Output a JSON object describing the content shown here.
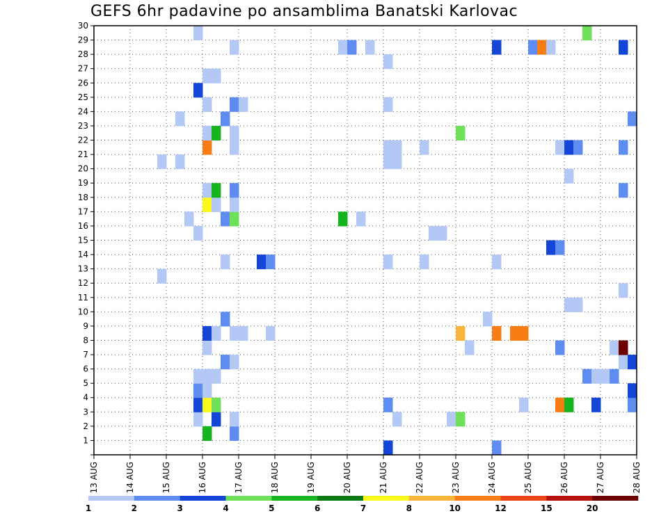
{
  "title": "GEFS 6hr padavine po ansamblima Banatski Karlovac",
  "chart_data": {
    "type": "heatmap",
    "title": "GEFS 6hr padavine po ansamblima Banatski Karlovac",
    "x_tick_labels": [
      "13 AUG",
      "14 AUG",
      "15 AUG",
      "16 AUG",
      "17 AUG",
      "18 AUG",
      "19 AUG",
      "20 AUG",
      "21 AUG",
      "22 AUG",
      "23 AUG",
      "24 AUG",
      "25 AUG",
      "26 AUG",
      "27 AUG",
      "28 AUG"
    ],
    "y_tick_labels": [
      "1",
      "2",
      "3",
      "4",
      "5",
      "6",
      "7",
      "8",
      "9",
      "10",
      "11",
      "12",
      "13",
      "14",
      "15",
      "16",
      "17",
      "18",
      "19",
      "20",
      "21",
      "22",
      "23",
      "24",
      "25",
      "26",
      "27",
      "28",
      "29",
      "30"
    ],
    "xlim_days": [
      13,
      28
    ],
    "ylim": [
      0,
      30
    ],
    "grid": true,
    "colorbar": {
      "labels": [
        "1",
        "2",
        "3",
        "4",
        "5",
        "6",
        "7",
        "8",
        "10",
        "12",
        "15",
        "20"
      ],
      "colors": [
        "#b3c8f5",
        "#5f8cf0",
        "#1346d6",
        "#6ee05a",
        "#16b41e",
        "#0a7a12",
        "#f8f81a",
        "#f8b43c",
        "#f87d14",
        "#e84414",
        "#b4140a",
        "#6e0000"
      ]
    },
    "cells": [
      {
        "t": 16.0,
        "m": 1,
        "c": 5
      },
      {
        "t": 16.75,
        "m": 1,
        "c": 2
      },
      {
        "t": 21.0,
        "m": 0,
        "c": 3
      },
      {
        "t": 24.0,
        "m": 0,
        "c": 2
      },
      {
        "t": 15.75,
        "m": 2,
        "c": 1
      },
      {
        "t": 16.25,
        "m": 2,
        "c": 3
      },
      {
        "t": 16.75,
        "m": 2,
        "c": 1
      },
      {
        "t": 21.25,
        "m": 2,
        "c": 1
      },
      {
        "t": 22.75,
        "m": 2,
        "c": 1
      },
      {
        "t": 23.0,
        "m": 2,
        "c": 4
      },
      {
        "t": 15.75,
        "m": 3,
        "c": 3
      },
      {
        "t": 16.0,
        "m": 3,
        "c": 7
      },
      {
        "t": 16.25,
        "m": 3,
        "c": 4
      },
      {
        "t": 21.0,
        "m": 3,
        "c": 2
      },
      {
        "t": 24.75,
        "m": 3,
        "c": 1
      },
      {
        "t": 25.75,
        "m": 3,
        "c": 9
      },
      {
        "t": 26.0,
        "m": 3,
        "c": 5
      },
      {
        "t": 26.75,
        "m": 3,
        "c": 3
      },
      {
        "t": 27.75,
        "m": 3,
        "c": 2
      },
      {
        "t": 15.75,
        "m": 4,
        "c": 2
      },
      {
        "t": 16.0,
        "m": 4,
        "c": 1
      },
      {
        "t": 27.75,
        "m": 4,
        "c": 3
      },
      {
        "t": 15.75,
        "m": 5,
        "c": 1
      },
      {
        "t": 16.0,
        "m": 5,
        "c": 1
      },
      {
        "t": 16.25,
        "m": 5,
        "c": 1
      },
      {
        "t": 26.5,
        "m": 5,
        "c": 2
      },
      {
        "t": 26.75,
        "m": 5,
        "c": 1
      },
      {
        "t": 27.0,
        "m": 5,
        "c": 1
      },
      {
        "t": 27.25,
        "m": 5,
        "c": 2
      },
      {
        "t": 16.5,
        "m": 6,
        "c": 2
      },
      {
        "t": 16.75,
        "m": 6,
        "c": 1
      },
      {
        "t": 27.5,
        "m": 6,
        "c": 1
      },
      {
        "t": 27.75,
        "m": 6,
        "c": 3
      },
      {
        "t": 16.0,
        "m": 7,
        "c": 1
      },
      {
        "t": 23.25,
        "m": 7,
        "c": 1
      },
      {
        "t": 25.75,
        "m": 7,
        "c": 2
      },
      {
        "t": 27.25,
        "m": 7,
        "c": 1
      },
      {
        "t": 27.5,
        "m": 7,
        "c": 12
      },
      {
        "t": 16.0,
        "m": 8,
        "c": 3
      },
      {
        "t": 16.25,
        "m": 8,
        "c": 1
      },
      {
        "t": 16.75,
        "m": 8,
        "c": 1
      },
      {
        "t": 17.0,
        "m": 8,
        "c": 1
      },
      {
        "t": 17.75,
        "m": 8,
        "c": 1
      },
      {
        "t": 23.0,
        "m": 8,
        "c": 8
      },
      {
        "t": 24.0,
        "m": 8,
        "c": 9
      },
      {
        "t": 24.5,
        "m": 8,
        "c": 9
      },
      {
        "t": 24.75,
        "m": 8,
        "c": 9
      },
      {
        "t": 16.5,
        "m": 9,
        "c": 2
      },
      {
        "t": 23.75,
        "m": 9,
        "c": 1
      },
      {
        "t": 26.0,
        "m": 10,
        "c": 1
      },
      {
        "t": 26.25,
        "m": 10,
        "c": 1
      },
      {
        "t": 27.5,
        "m": 11,
        "c": 1
      },
      {
        "t": 14.75,
        "m": 12,
        "c": 1
      },
      {
        "t": 16.5,
        "m": 13,
        "c": 1
      },
      {
        "t": 17.5,
        "m": 13,
        "c": 3
      },
      {
        "t": 17.75,
        "m": 13,
        "c": 2
      },
      {
        "t": 21.0,
        "m": 13,
        "c": 1
      },
      {
        "t": 22.0,
        "m": 13,
        "c": 1
      },
      {
        "t": 24.0,
        "m": 13,
        "c": 1
      },
      {
        "t": 25.5,
        "m": 14,
        "c": 3
      },
      {
        "t": 25.75,
        "m": 14,
        "c": 2
      },
      {
        "t": 15.75,
        "m": 15,
        "c": 1
      },
      {
        "t": 22.25,
        "m": 15,
        "c": 1
      },
      {
        "t": 22.5,
        "m": 15,
        "c": 1
      },
      {
        "t": 15.5,
        "m": 16,
        "c": 1
      },
      {
        "t": 16.5,
        "m": 16,
        "c": 2
      },
      {
        "t": 16.75,
        "m": 16,
        "c": 4
      },
      {
        "t": 19.75,
        "m": 16,
        "c": 5
      },
      {
        "t": 20.25,
        "m": 16,
        "c": 1
      },
      {
        "t": 16.0,
        "m": 17,
        "c": 7
      },
      {
        "t": 16.25,
        "m": 17,
        "c": 1
      },
      {
        "t": 16.75,
        "m": 17,
        "c": 1
      },
      {
        "t": 16.0,
        "m": 18,
        "c": 1
      },
      {
        "t": 16.25,
        "m": 18,
        "c": 5
      },
      {
        "t": 16.75,
        "m": 18,
        "c": 2
      },
      {
        "t": 27.5,
        "m": 18,
        "c": 2
      },
      {
        "t": 26.0,
        "m": 19,
        "c": 1
      },
      {
        "t": 14.75,
        "m": 20,
        "c": 1
      },
      {
        "t": 15.25,
        "m": 20,
        "c": 1
      },
      {
        "t": 21.0,
        "m": 20,
        "c": 1
      },
      {
        "t": 21.25,
        "m": 20,
        "c": 1
      },
      {
        "t": 16.0,
        "m": 21,
        "c": 9
      },
      {
        "t": 16.75,
        "m": 21,
        "c": 1
      },
      {
        "t": 21.0,
        "m": 21,
        "c": 1
      },
      {
        "t": 21.25,
        "m": 21,
        "c": 1
      },
      {
        "t": 22.0,
        "m": 21,
        "c": 1
      },
      {
        "t": 25.75,
        "m": 21,
        "c": 1
      },
      {
        "t": 26.0,
        "m": 21,
        "c": 3
      },
      {
        "t": 26.25,
        "m": 21,
        "c": 2
      },
      {
        "t": 27.5,
        "m": 21,
        "c": 2
      },
      {
        "t": 16.0,
        "m": 22,
        "c": 1
      },
      {
        "t": 16.25,
        "m": 22,
        "c": 5
      },
      {
        "t": 16.75,
        "m": 22,
        "c": 1
      },
      {
        "t": 23.0,
        "m": 22,
        "c": 4
      },
      {
        "t": 15.25,
        "m": 23,
        "c": 1
      },
      {
        "t": 16.5,
        "m": 23,
        "c": 2
      },
      {
        "t": 27.75,
        "m": 23,
        "c": 2
      },
      {
        "t": 16.0,
        "m": 24,
        "c": 1
      },
      {
        "t": 16.75,
        "m": 24,
        "c": 2
      },
      {
        "t": 17.0,
        "m": 24,
        "c": 1
      },
      {
        "t": 21.0,
        "m": 24,
        "c": 1
      },
      {
        "t": 15.75,
        "m": 25,
        "c": 3
      },
      {
        "t": 16.0,
        "m": 26,
        "c": 1
      },
      {
        "t": 16.25,
        "m": 26,
        "c": 1
      },
      {
        "t": 21.0,
        "m": 27,
        "c": 1
      },
      {
        "t": 16.75,
        "m": 28,
        "c": 1
      },
      {
        "t": 19.75,
        "m": 28,
        "c": 1
      },
      {
        "t": 20.0,
        "m": 28,
        "c": 2
      },
      {
        "t": 20.5,
        "m": 28,
        "c": 1
      },
      {
        "t": 24.0,
        "m": 28,
        "c": 3
      },
      {
        "t": 25.0,
        "m": 28,
        "c": 2
      },
      {
        "t": 25.25,
        "m": 28,
        "c": 9
      },
      {
        "t": 25.5,
        "m": 28,
        "c": 1
      },
      {
        "t": 27.5,
        "m": 28,
        "c": 3
      },
      {
        "t": 15.75,
        "m": 29,
        "c": 1
      },
      {
        "t": 26.5,
        "m": 29,
        "c": 4
      }
    ]
  }
}
